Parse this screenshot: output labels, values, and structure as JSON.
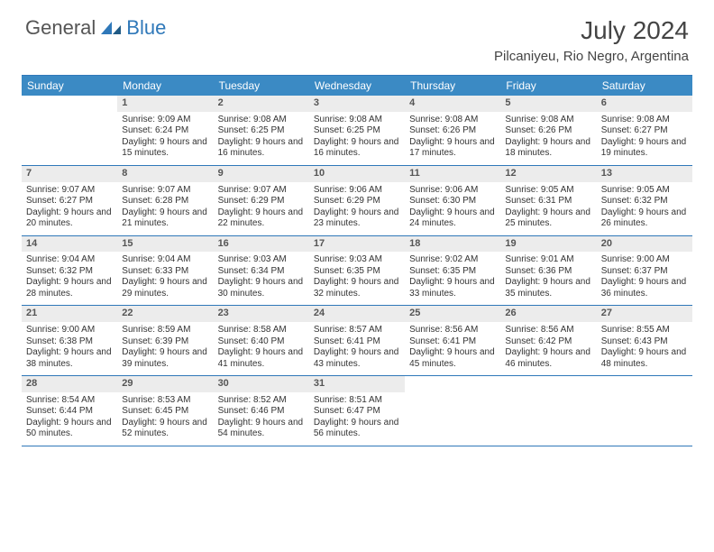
{
  "logo": {
    "text1": "General",
    "text2": "Blue"
  },
  "title": "July 2024",
  "location": "Pilcaniyeu, Rio Negro, Argentina",
  "colors": {
    "header_bg": "#3b8ac4",
    "border": "#2f78b9",
    "numbar": "#ececec",
    "text": "#333333"
  },
  "dayNames": [
    "Sunday",
    "Monday",
    "Tuesday",
    "Wednesday",
    "Thursday",
    "Friday",
    "Saturday"
  ],
  "weeks": [
    [
      {
        "n": "",
        "sr": "",
        "ss": "",
        "dl": ""
      },
      {
        "n": "1",
        "sr": "Sunrise: 9:09 AM",
        "ss": "Sunset: 6:24 PM",
        "dl": "Daylight: 9 hours and 15 minutes."
      },
      {
        "n": "2",
        "sr": "Sunrise: 9:08 AM",
        "ss": "Sunset: 6:25 PM",
        "dl": "Daylight: 9 hours and 16 minutes."
      },
      {
        "n": "3",
        "sr": "Sunrise: 9:08 AM",
        "ss": "Sunset: 6:25 PM",
        "dl": "Daylight: 9 hours and 16 minutes."
      },
      {
        "n": "4",
        "sr": "Sunrise: 9:08 AM",
        "ss": "Sunset: 6:26 PM",
        "dl": "Daylight: 9 hours and 17 minutes."
      },
      {
        "n": "5",
        "sr": "Sunrise: 9:08 AM",
        "ss": "Sunset: 6:26 PM",
        "dl": "Daylight: 9 hours and 18 minutes."
      },
      {
        "n": "6",
        "sr": "Sunrise: 9:08 AM",
        "ss": "Sunset: 6:27 PM",
        "dl": "Daylight: 9 hours and 19 minutes."
      }
    ],
    [
      {
        "n": "7",
        "sr": "Sunrise: 9:07 AM",
        "ss": "Sunset: 6:27 PM",
        "dl": "Daylight: 9 hours and 20 minutes."
      },
      {
        "n": "8",
        "sr": "Sunrise: 9:07 AM",
        "ss": "Sunset: 6:28 PM",
        "dl": "Daylight: 9 hours and 21 minutes."
      },
      {
        "n": "9",
        "sr": "Sunrise: 9:07 AM",
        "ss": "Sunset: 6:29 PM",
        "dl": "Daylight: 9 hours and 22 minutes."
      },
      {
        "n": "10",
        "sr": "Sunrise: 9:06 AM",
        "ss": "Sunset: 6:29 PM",
        "dl": "Daylight: 9 hours and 23 minutes."
      },
      {
        "n": "11",
        "sr": "Sunrise: 9:06 AM",
        "ss": "Sunset: 6:30 PM",
        "dl": "Daylight: 9 hours and 24 minutes."
      },
      {
        "n": "12",
        "sr": "Sunrise: 9:05 AM",
        "ss": "Sunset: 6:31 PM",
        "dl": "Daylight: 9 hours and 25 minutes."
      },
      {
        "n": "13",
        "sr": "Sunrise: 9:05 AM",
        "ss": "Sunset: 6:32 PM",
        "dl": "Daylight: 9 hours and 26 minutes."
      }
    ],
    [
      {
        "n": "14",
        "sr": "Sunrise: 9:04 AM",
        "ss": "Sunset: 6:32 PM",
        "dl": "Daylight: 9 hours and 28 minutes."
      },
      {
        "n": "15",
        "sr": "Sunrise: 9:04 AM",
        "ss": "Sunset: 6:33 PM",
        "dl": "Daylight: 9 hours and 29 minutes."
      },
      {
        "n": "16",
        "sr": "Sunrise: 9:03 AM",
        "ss": "Sunset: 6:34 PM",
        "dl": "Daylight: 9 hours and 30 minutes."
      },
      {
        "n": "17",
        "sr": "Sunrise: 9:03 AM",
        "ss": "Sunset: 6:35 PM",
        "dl": "Daylight: 9 hours and 32 minutes."
      },
      {
        "n": "18",
        "sr": "Sunrise: 9:02 AM",
        "ss": "Sunset: 6:35 PM",
        "dl": "Daylight: 9 hours and 33 minutes."
      },
      {
        "n": "19",
        "sr": "Sunrise: 9:01 AM",
        "ss": "Sunset: 6:36 PM",
        "dl": "Daylight: 9 hours and 35 minutes."
      },
      {
        "n": "20",
        "sr": "Sunrise: 9:00 AM",
        "ss": "Sunset: 6:37 PM",
        "dl": "Daylight: 9 hours and 36 minutes."
      }
    ],
    [
      {
        "n": "21",
        "sr": "Sunrise: 9:00 AM",
        "ss": "Sunset: 6:38 PM",
        "dl": "Daylight: 9 hours and 38 minutes."
      },
      {
        "n": "22",
        "sr": "Sunrise: 8:59 AM",
        "ss": "Sunset: 6:39 PM",
        "dl": "Daylight: 9 hours and 39 minutes."
      },
      {
        "n": "23",
        "sr": "Sunrise: 8:58 AM",
        "ss": "Sunset: 6:40 PM",
        "dl": "Daylight: 9 hours and 41 minutes."
      },
      {
        "n": "24",
        "sr": "Sunrise: 8:57 AM",
        "ss": "Sunset: 6:41 PM",
        "dl": "Daylight: 9 hours and 43 minutes."
      },
      {
        "n": "25",
        "sr": "Sunrise: 8:56 AM",
        "ss": "Sunset: 6:41 PM",
        "dl": "Daylight: 9 hours and 45 minutes."
      },
      {
        "n": "26",
        "sr": "Sunrise: 8:56 AM",
        "ss": "Sunset: 6:42 PM",
        "dl": "Daylight: 9 hours and 46 minutes."
      },
      {
        "n": "27",
        "sr": "Sunrise: 8:55 AM",
        "ss": "Sunset: 6:43 PM",
        "dl": "Daylight: 9 hours and 48 minutes."
      }
    ],
    [
      {
        "n": "28",
        "sr": "Sunrise: 8:54 AM",
        "ss": "Sunset: 6:44 PM",
        "dl": "Daylight: 9 hours and 50 minutes."
      },
      {
        "n": "29",
        "sr": "Sunrise: 8:53 AM",
        "ss": "Sunset: 6:45 PM",
        "dl": "Daylight: 9 hours and 52 minutes."
      },
      {
        "n": "30",
        "sr": "Sunrise: 8:52 AM",
        "ss": "Sunset: 6:46 PM",
        "dl": "Daylight: 9 hours and 54 minutes."
      },
      {
        "n": "31",
        "sr": "Sunrise: 8:51 AM",
        "ss": "Sunset: 6:47 PM",
        "dl": "Daylight: 9 hours and 56 minutes."
      },
      {
        "n": "",
        "sr": "",
        "ss": "",
        "dl": ""
      },
      {
        "n": "",
        "sr": "",
        "ss": "",
        "dl": ""
      },
      {
        "n": "",
        "sr": "",
        "ss": "",
        "dl": ""
      }
    ]
  ]
}
